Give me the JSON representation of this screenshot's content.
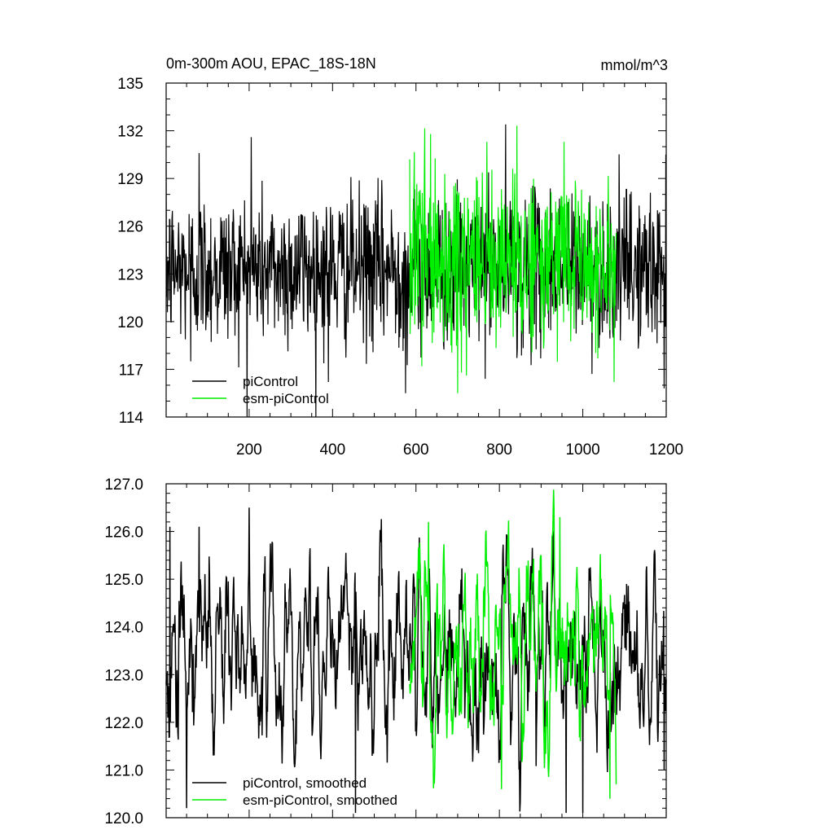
{
  "chart_data": [
    {
      "type": "line",
      "title": "0m-300m AOU, EPAC_18S-18N",
      "units": "mmol/m^3",
      "xlabel": "",
      "ylabel": "",
      "xlim": [
        1,
        1200
      ],
      "ylim": [
        114,
        135
      ],
      "xticks": [
        200,
        400,
        600,
        800,
        1000,
        1200
      ],
      "yticks": [
        114,
        117,
        120,
        123,
        126,
        129,
        132,
        135
      ],
      "yticklabels": [
        "114",
        "117",
        "120",
        "123",
        "126",
        "129",
        "132",
        "135"
      ],
      "grid": false,
      "legend_position": "bottom-left",
      "series": [
        {
          "name": "piControl",
          "color": "#000000",
          "x_range": [
            1,
            1200
          ],
          "mean": 123.3,
          "sd": 2.4,
          "notable_points": [
            [
              60,
              117.5
            ],
            [
              80,
              130.6
            ],
            [
              205,
              131.6
            ],
            [
              390,
              116.2
            ],
            [
              575,
              115.5
            ],
            [
              815,
              132.4
            ],
            [
              1195,
              115.8
            ]
          ]
        },
        {
          "name": "esm-piControl",
          "color": "#00ee00",
          "x_range": [
            585,
            1080
          ],
          "mean": 123.6,
          "sd": 2.7,
          "notable_points": [
            [
              635,
              131.8
            ],
            [
              700,
              115.5
            ],
            [
              770,
              131.3
            ],
            [
              955,
              131.3
            ],
            [
              1075,
              116.2
            ]
          ]
        }
      ]
    },
    {
      "type": "line",
      "title": "",
      "xlabel": "",
      "ylabel": "",
      "xlim": [
        1,
        1200
      ],
      "ylim": [
        120.0,
        127.0
      ],
      "xticks": [
        200,
        400,
        600,
        800,
        1000,
        1200
      ],
      "yticks": [
        120,
        121,
        122,
        123,
        124,
        125,
        126,
        127
      ],
      "yticklabels": [
        "120.0",
        "121.0",
        "122.0",
        "123.0",
        "124.0",
        "125.0",
        "126.0",
        "127.0"
      ],
      "grid": false,
      "legend_position": "bottom-left",
      "series": [
        {
          "name": "piControl, smoothed",
          "color": "#000000",
          "x_range": [
            1,
            1200
          ],
          "mean": 123.4,
          "sd": 1.0,
          "notable_points": [
            [
              10,
              126.1
            ],
            [
              50,
              120.2
            ],
            [
              80,
              126.1
            ],
            [
              200,
              126.5
            ],
            [
              455,
              120.1
            ],
            [
              960,
              120.1
            ],
            [
              1000,
              120.1
            ],
            [
              1195,
              121.0
            ]
          ]
        },
        {
          "name": "esm-piControl, smoothed",
          "color": "#00ee00",
          "x_range": [
            585,
            1080
          ],
          "mean": 123.6,
          "sd": 1.1,
          "notable_points": [
            [
              630,
              126.2
            ],
            [
              805,
              120.6
            ],
            [
              945,
              126.3
            ],
            [
              1065,
              120.4
            ]
          ]
        }
      ]
    }
  ]
}
